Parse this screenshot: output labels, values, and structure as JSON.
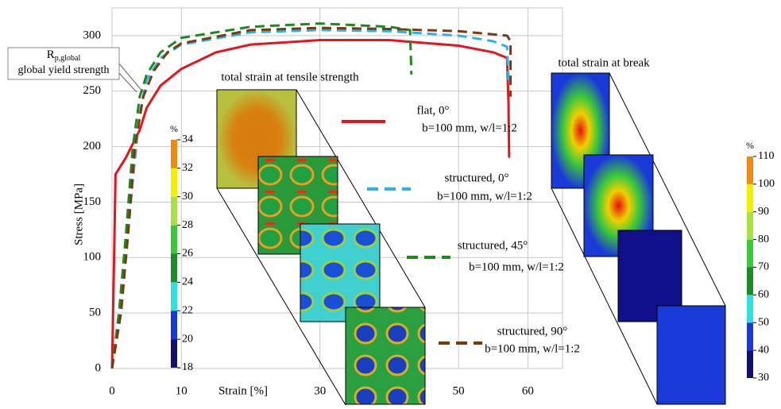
{
  "chart_data": {
    "type": "line",
    "xlabel": "Strain [%]",
    "ylabel": "Stress [MPa]",
    "xlim": [
      0,
      65
    ],
    "xticks": [
      0,
      10,
      30,
      50,
      60
    ],
    "ylim": [
      0,
      325
    ],
    "yticks": [
      0,
      50,
      100,
      150,
      200,
      250,
      300
    ],
    "grid": true,
    "series": [
      {
        "name": "flat, 0°",
        "note": "b=100 mm, w/l=1:2",
        "color": "#e8141c",
        "dashed": false,
        "x": [
          0,
          0.3,
          0.5,
          2,
          4,
          5,
          7,
          10,
          15,
          20,
          30,
          40,
          50,
          55,
          57,
          57.2,
          57.3
        ],
        "values": [
          0,
          100,
          175,
          190,
          215,
          235,
          255,
          270,
          285,
          292,
          296,
          296,
          291,
          285,
          280,
          240,
          190
        ]
      },
      {
        "name": "structured, 0°",
        "note": "b=100 mm, w/l=1:2",
        "color": "#28b4e8",
        "dashed": true,
        "x": [
          0,
          1,
          2,
          3,
          4,
          5,
          7,
          10,
          20,
          30,
          40,
          50,
          55,
          57,
          57.2
        ],
        "values": [
          0,
          50,
          100,
          170,
          230,
          260,
          280,
          292,
          303,
          305,
          304,
          300,
          295,
          290,
          260
        ]
      },
      {
        "name": "structured,  45°",
        "note": "b=100 mm, w/l=1:2",
        "color": "#1e8a1e",
        "dashed": true,
        "x": [
          0,
          1,
          2,
          3,
          4,
          5,
          7,
          10,
          20,
          30,
          40,
          43,
          43.2
        ],
        "values": [
          0,
          50,
          120,
          200,
          245,
          265,
          285,
          298,
          308,
          311,
          308,
          305,
          265
        ]
      },
      {
        "name": "structured, 90°",
        "note": "b=100 mm, w/l=1:2",
        "color": "#7a3a10",
        "dashed": true,
        "x": [
          0,
          1.3,
          2.3,
          3.3,
          4.5,
          6,
          8,
          10,
          20,
          30,
          40,
          50,
          57,
          57.5,
          57.5
        ],
        "values": [
          0,
          50,
          120,
          200,
          245,
          268,
          285,
          293,
          305,
          307,
          306,
          304,
          300,
          295,
          245
        ]
      }
    ],
    "annotation_symbol": "R",
    "annotation_subscript": "p,global",
    "annotation_text": "global yield strength",
    "inset_title_left": "total strain at tensile strength",
    "inset_title_right": "total strain at break",
    "colorbars": [
      {
        "unit": "%",
        "ticks": [
          18,
          20,
          22,
          24,
          26,
          28,
          30,
          32,
          34
        ],
        "colors": [
          "#10106e",
          "#1a3ad8",
          "#30e0e0",
          "#1e8a2a",
          "#3ac83a",
          "#a8e04a",
          "#f0f000",
          "#f08a10",
          "#e81010"
        ]
      },
      {
        "unit": "%",
        "ticks": [
          30,
          40,
          50,
          60,
          70,
          80,
          90,
          100,
          110
        ],
        "colors": [
          "#10106e",
          "#1a3ad8",
          "#30e0e0",
          "#1e8a2a",
          "#3ac83a",
          "#a8e04a",
          "#f0f000",
          "#f08a10",
          "#e81010"
        ]
      }
    ]
  }
}
